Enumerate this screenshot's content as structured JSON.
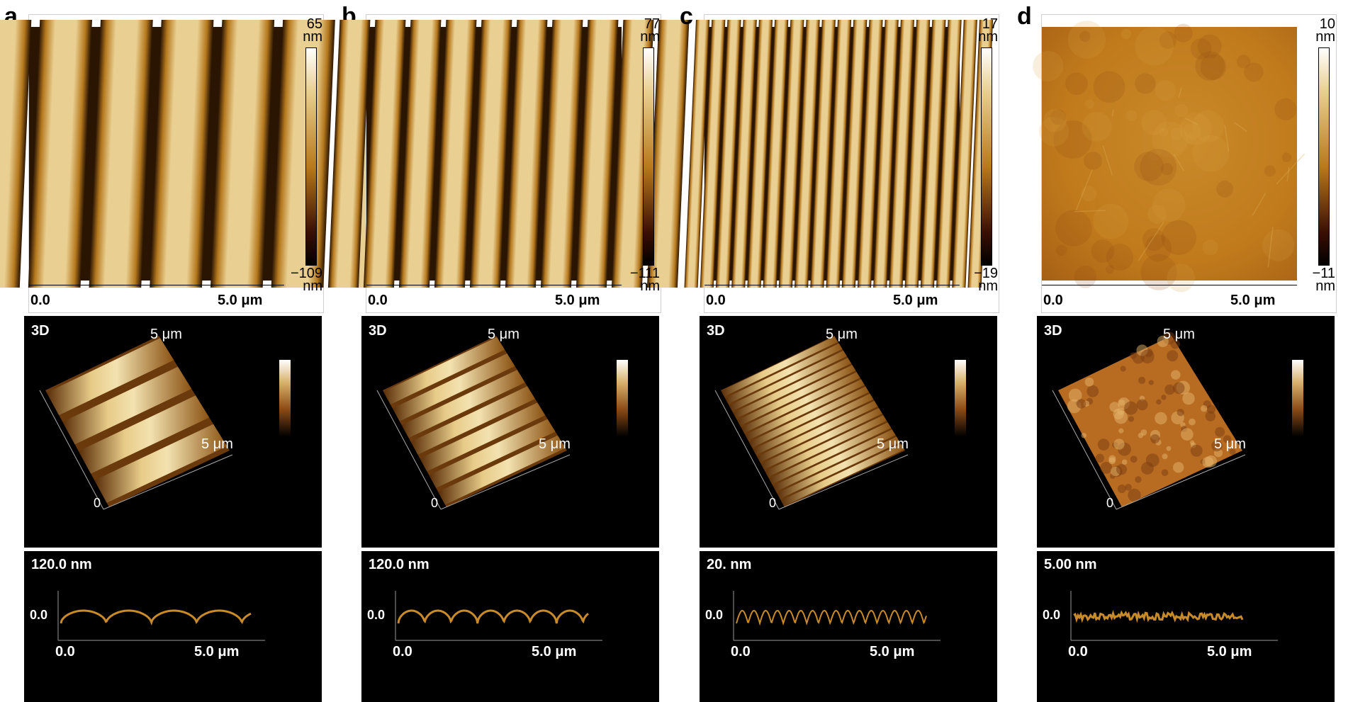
{
  "panels": [
    {
      "label": "a",
      "colorbar": {
        "max": "65",
        "max_unit": "nm",
        "min": "−109",
        "min_unit": "nm"
      },
      "scale": {
        "start": "0.0",
        "end": "5.0 μm"
      },
      "view3d": {
        "label": "3D",
        "axis_far": "5 μm",
        "axis_right": "5 μm",
        "origin": "0"
      },
      "profile": {
        "height_label": "120.0 nm",
        "zero": "0.0",
        "x_start": "0.0",
        "x_end": "5.0 μm"
      },
      "stripe_count": 4
    },
    {
      "label": "b",
      "colorbar": {
        "max": "77",
        "max_unit": "nm",
        "min": "−111",
        "min_unit": "nm"
      },
      "scale": {
        "start": "0.0",
        "end": "5.0 μm"
      },
      "view3d": {
        "label": "3D",
        "axis_far": "5 μm",
        "axis_right": "5 μm",
        "origin": "0"
      },
      "profile": {
        "height_label": "120.0 nm",
        "zero": "0.0",
        "x_start": "0.0",
        "x_end": "5.0 μm"
      },
      "stripe_count": 7
    },
    {
      "label": "c",
      "colorbar": {
        "max": "17",
        "max_unit": "nm",
        "min": "−19",
        "min_unit": "nm"
      },
      "scale": {
        "start": "0.0",
        "end": "5.0 μm"
      },
      "view3d": {
        "label": "3D",
        "axis_far": "5 μm",
        "axis_right": "5 μm",
        "origin": "0"
      },
      "profile": {
        "height_label": "20. nm",
        "zero": "0.0",
        "x_start": "0.0",
        "x_end": "5.0 μm"
      },
      "stripe_count": 16
    },
    {
      "label": "d",
      "colorbar": {
        "max": "10",
        "max_unit": "nm",
        "min": "−11",
        "min_unit": "nm"
      },
      "scale": {
        "start": "0.0",
        "end": "5.0 μm"
      },
      "view3d": {
        "label": "3D",
        "axis_far": "5 μm",
        "axis_right": "5 μm",
        "origin": "0"
      },
      "profile": {
        "height_label": "5.00 nm",
        "zero": "0.0",
        "x_start": "0.0",
        "x_end": "5.0 μm"
      },
      "stripe_count": 0
    }
  ],
  "colors": {
    "afm_light": "#e9cf91",
    "afm_dark": "#2a1503",
    "afm_mid": "#b5781d",
    "flat_surface": "#c07a1c"
  }
}
